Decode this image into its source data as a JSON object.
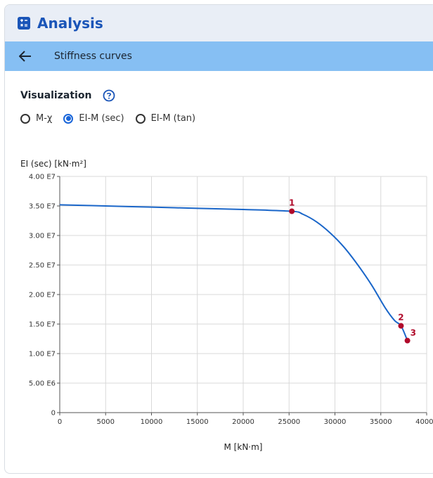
{
  "header": {
    "title": "Analysis",
    "icon": "calculator-icon"
  },
  "subheader": {
    "title": "Stiffness curves",
    "back_icon": "arrow-left-icon"
  },
  "visualization": {
    "label": "Visualization",
    "help_icon": "question-circle-icon",
    "options": [
      {
        "label": "M-χ",
        "selected": false
      },
      {
        "label": "EI-M (sec)",
        "selected": true
      },
      {
        "label": "EI-M (tan)",
        "selected": false
      }
    ]
  },
  "colors": {
    "accent": "#1a55b8",
    "subbar": "#86bff3",
    "line": "#1a66c9",
    "marker": "#b00a2a"
  },
  "chart_data": {
    "type": "line",
    "ylabel": "EI (sec) [kN·m²]",
    "xlabel": "M [kN·m]",
    "xlim": [
      0,
      40000
    ],
    "ylim": [
      0,
      40000000
    ],
    "x_ticks": [
      "0",
      "5000",
      "10000",
      "15000",
      "20000",
      "25000",
      "30000",
      "35000",
      "40000"
    ],
    "y_ticks": [
      "0",
      "5.00 E6",
      "1.00 E7",
      "1.50 E7",
      "2.00 E7",
      "2.50 E7",
      "3.00 E7",
      "3.50 E7",
      "4.00 E7"
    ],
    "grid": true,
    "series": [
      {
        "x": [
          0,
          5000,
          10000,
          15000,
          20000,
          25300,
          26500,
          28000,
          29500,
          31000,
          32500,
          34000,
          35500,
          36500,
          37200,
          37900
        ],
        "y": [
          35200000,
          35000000,
          34800000,
          34600000,
          34400000,
          34100000,
          33600000,
          32300000,
          30400000,
          28000000,
          25000000,
          21600000,
          17700000,
          15600000,
          14700000,
          12200000
        ]
      }
    ],
    "markers": [
      {
        "label": "1",
        "x": 25300,
        "y": 34100000
      },
      {
        "label": "2",
        "x": 37200,
        "y": 14700000
      },
      {
        "label": "3",
        "x": 37900,
        "y": 12200000
      }
    ]
  }
}
